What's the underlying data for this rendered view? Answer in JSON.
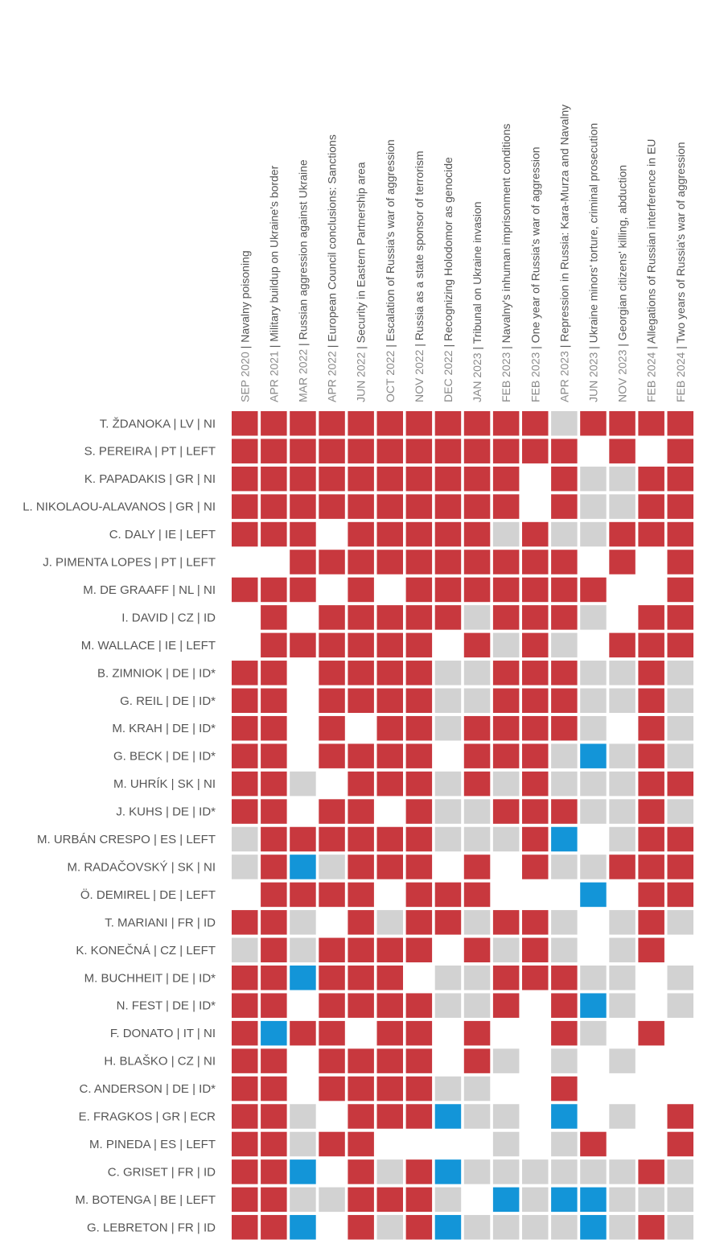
{
  "chart_data": {
    "type": "heatmap",
    "legend": {
      "2": "red",
      "1": "grey",
      "3": "blue",
      "0": "white"
    },
    "colors": {
      "2": "#c8383e",
      "1": "#d2d2d2",
      "3": "#1395d8",
      "0": "#ffffff"
    },
    "columns": [
      {
        "date": "SEP 2020",
        "title": "Navalny poisoning"
      },
      {
        "date": "APR 2021",
        "title": "Military buildup on Ukraine's border"
      },
      {
        "date": "MAR 2022",
        "title": "Russian aggression against Ukraine"
      },
      {
        "date": "APR 2022",
        "title": "European Council conclusions: Sanctions"
      },
      {
        "date": "JUN 2022",
        "title": "Security in Eastern Partnership area"
      },
      {
        "date": "OCT 2022",
        "title": "Escalation of Russia's war of aggression"
      },
      {
        "date": "NOV 2022",
        "title": "Russia as a state sponsor of terrorism"
      },
      {
        "date": "DEC 2022",
        "title": "Recognizing Holodomor as genocide"
      },
      {
        "date": "JAN 2023",
        "title": "Tribunal on Ukraine invasion"
      },
      {
        "date": "FEB 2023",
        "title": "Navalny's inhuman imprisonment conditions"
      },
      {
        "date": "FEB 2023",
        "title": "One year of Russia's war of aggression"
      },
      {
        "date": "APR 2023",
        "title": "Repression in Russia: Kara-Murza and Navalny"
      },
      {
        "date": "JUN 2023",
        "title": "Ukraine minors' torture, criminal prosecution"
      },
      {
        "date": "NOV 2023",
        "title": "Georgian citizens' killing, abduction"
      },
      {
        "date": "FEB 2024",
        "title": "Allegations of Russian interference in EU"
      },
      {
        "date": "FEB 2024",
        "title": "Two years of Russia's war of aggression"
      }
    ],
    "rows": [
      {
        "label": "T. ŽDANOKA | LV | NI",
        "values": [
          2,
          2,
          2,
          2,
          2,
          2,
          2,
          2,
          2,
          2,
          2,
          1,
          2,
          2,
          2,
          2
        ]
      },
      {
        "label": "S. PEREIRA | PT | LEFT",
        "values": [
          2,
          2,
          2,
          2,
          2,
          2,
          2,
          2,
          2,
          2,
          2,
          2,
          0,
          2,
          0,
          2
        ]
      },
      {
        "label": "K. PAPADAKIS | GR | NI",
        "values": [
          2,
          2,
          2,
          2,
          2,
          2,
          2,
          2,
          2,
          2,
          0,
          2,
          1,
          1,
          2,
          2
        ]
      },
      {
        "label": "L. NIKOLAOU-ALAVANOS | GR | NI",
        "values": [
          2,
          2,
          2,
          2,
          2,
          2,
          2,
          2,
          2,
          2,
          0,
          2,
          1,
          1,
          2,
          2
        ]
      },
      {
        "label": "C. DALY | IE | LEFT",
        "values": [
          2,
          2,
          2,
          0,
          2,
          2,
          2,
          2,
          2,
          1,
          2,
          1,
          1,
          2,
          2,
          2
        ]
      },
      {
        "label": "J. PIMENTA LOPES | PT | LEFT",
        "values": [
          0,
          0,
          2,
          2,
          2,
          2,
          2,
          2,
          2,
          2,
          2,
          2,
          0,
          2,
          0,
          2
        ]
      },
      {
        "label": "M. DE GRAAFF | NL | NI",
        "values": [
          2,
          2,
          2,
          0,
          2,
          0,
          2,
          2,
          2,
          2,
          2,
          2,
          2,
          0,
          0,
          2
        ]
      },
      {
        "label": "I. DAVID | CZ | ID",
        "values": [
          0,
          2,
          0,
          2,
          2,
          2,
          2,
          2,
          1,
          2,
          2,
          2,
          1,
          0,
          2,
          2
        ]
      },
      {
        "label": "M. WALLACE | IE | LEFT",
        "values": [
          0,
          2,
          2,
          2,
          2,
          2,
          2,
          0,
          2,
          1,
          2,
          1,
          0,
          2,
          2,
          2
        ]
      },
      {
        "label": "B. ZIMNIOK | DE | ID*",
        "values": [
          2,
          2,
          0,
          2,
          2,
          2,
          2,
          1,
          1,
          2,
          2,
          2,
          1,
          1,
          2,
          1
        ]
      },
      {
        "label": "G. REIL | DE | ID*",
        "values": [
          2,
          2,
          0,
          2,
          2,
          2,
          2,
          1,
          1,
          2,
          2,
          2,
          1,
          1,
          2,
          1
        ]
      },
      {
        "label": "M. KRAH | DE | ID*",
        "values": [
          2,
          2,
          0,
          2,
          0,
          2,
          2,
          1,
          2,
          2,
          2,
          2,
          1,
          0,
          2,
          1
        ]
      },
      {
        "label": "G. BECK | DE | ID*",
        "values": [
          2,
          2,
          0,
          2,
          2,
          2,
          2,
          0,
          2,
          2,
          2,
          1,
          3,
          1,
          2,
          1
        ]
      },
      {
        "label": "M. UHRÍK | SK | NI",
        "values": [
          2,
          2,
          1,
          0,
          2,
          2,
          2,
          1,
          2,
          1,
          2,
          1,
          1,
          1,
          2,
          2
        ]
      },
      {
        "label": "J. KUHS | DE | ID*",
        "values": [
          2,
          2,
          0,
          2,
          2,
          0,
          2,
          1,
          1,
          2,
          2,
          2,
          1,
          1,
          2,
          1
        ]
      },
      {
        "label": "M. URBÁN CRESPO | ES | LEFT",
        "values": [
          1,
          2,
          2,
          2,
          2,
          2,
          2,
          1,
          1,
          1,
          2,
          3,
          0,
          1,
          2,
          2
        ]
      },
      {
        "label": "M. RADAČOVSKÝ | SK | NI",
        "values": [
          1,
          2,
          3,
          1,
          2,
          2,
          2,
          0,
          2,
          0,
          2,
          1,
          1,
          2,
          2,
          2
        ]
      },
      {
        "label": "Ö. DEMIREL | DE | LEFT",
        "values": [
          0,
          2,
          2,
          2,
          2,
          0,
          2,
          2,
          2,
          0,
          0,
          0,
          3,
          0,
          2,
          2
        ]
      },
      {
        "label": "T. MARIANI | FR | ID",
        "values": [
          2,
          2,
          1,
          0,
          2,
          1,
          2,
          2,
          1,
          2,
          2,
          1,
          0,
          1,
          2,
          1
        ]
      },
      {
        "label": "K. KONEČNÁ | CZ | LEFT",
        "values": [
          1,
          2,
          1,
          2,
          2,
          2,
          2,
          0,
          2,
          1,
          2,
          1,
          0,
          1,
          2,
          0
        ]
      },
      {
        "label": "M. BUCHHEIT | DE | ID*",
        "values": [
          2,
          2,
          3,
          2,
          2,
          2,
          0,
          1,
          1,
          2,
          2,
          2,
          1,
          1,
          0,
          1
        ]
      },
      {
        "label": "N. FEST | DE | ID*",
        "values": [
          2,
          2,
          0,
          2,
          2,
          2,
          2,
          1,
          1,
          2,
          0,
          2,
          3,
          1,
          0,
          1
        ]
      },
      {
        "label": "F. DONATO | IT | NI",
        "values": [
          2,
          3,
          2,
          2,
          0,
          2,
          2,
          0,
          2,
          0,
          0,
          2,
          1,
          0,
          2,
          0
        ]
      },
      {
        "label": "H. BLAŠKO | CZ | NI",
        "values": [
          2,
          2,
          0,
          2,
          2,
          2,
          2,
          0,
          2,
          1,
          0,
          1,
          0,
          1,
          0,
          0
        ]
      },
      {
        "label": "C. ANDERSON | DE | ID*",
        "values": [
          2,
          2,
          0,
          2,
          2,
          2,
          2,
          1,
          1,
          0,
          0,
          2,
          0,
          0,
          0,
          0
        ]
      },
      {
        "label": "E. FRAGKOS | GR | ECR",
        "values": [
          2,
          2,
          1,
          0,
          2,
          2,
          2,
          3,
          1,
          1,
          0,
          3,
          0,
          1,
          0,
          2
        ]
      },
      {
        "label": "M. PINEDA | ES | LEFT",
        "values": [
          2,
          2,
          1,
          2,
          2,
          0,
          0,
          0,
          0,
          1,
          0,
          1,
          2,
          0,
          0,
          2
        ]
      },
      {
        "label": "C. GRISET | FR | ID",
        "values": [
          2,
          2,
          3,
          0,
          2,
          1,
          2,
          3,
          1,
          1,
          1,
          1,
          1,
          1,
          2,
          1
        ]
      },
      {
        "label": "M. BOTENGA | BE | LEFT",
        "values": [
          2,
          2,
          1,
          1,
          2,
          2,
          2,
          1,
          0,
          3,
          1,
          3,
          3,
          1,
          1,
          1
        ]
      },
      {
        "label": "G. LEBRETON | FR | ID",
        "values": [
          2,
          2,
          3,
          0,
          2,
          1,
          2,
          3,
          1,
          1,
          1,
          1,
          3,
          1,
          2,
          1
        ]
      }
    ]
  }
}
